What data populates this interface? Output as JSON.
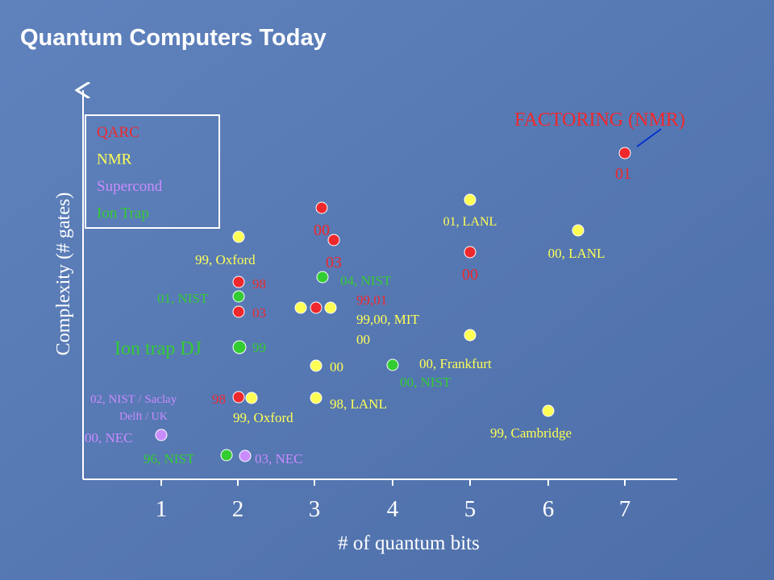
{
  "title": "Quantum Computers Today",
  "y_axis_label": "Complexity (# gates)",
  "x_axis_label": "# of quantum bits",
  "x_ticks": [
    "1",
    "2",
    "3",
    "4",
    "5",
    "6",
    "7"
  ],
  "legend": [
    "QARC",
    "NMR",
    "Supercond",
    "Ion Trap"
  ],
  "labels": [
    "FACTORING (NMR)",
    "01",
    "00",
    "03",
    "00",
    "01, LANL",
    "00, LANL",
    "99, Oxford",
    "98",
    "01, NIST",
    "03",
    "04, NIST",
    "99,01",
    "99,00, MIT",
    "00",
    "Ion trap DJ",
    "99",
    "00, Frankfurt",
    "00",
    "00, NIST",
    "02, NIST / Saclay",
    "98",
    "98, LANL",
    "Delft / UK",
    "99, Oxford",
    "99, Cambridge",
    "00, NEC",
    "96, NIST",
    "03, NEC"
  ]
}
